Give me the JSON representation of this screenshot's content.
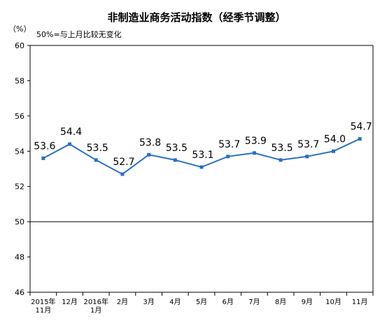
{
  "chart_data": {
    "type": "line",
    "title": "非制造业商务活动指数（经季节调整）",
    "unit_label": "（%）",
    "note": "50%=与上月比较无变化",
    "ylim": [
      46,
      60
    ],
    "y_ticks": [
      46,
      48,
      50,
      52,
      54,
      56,
      58,
      60
    ],
    "reference_line": 50,
    "categories": [
      [
        "2015年",
        "11月"
      ],
      [
        "12月"
      ],
      [
        "2016年",
        "1月"
      ],
      [
        "2月"
      ],
      [
        "3月"
      ],
      [
        "4月"
      ],
      [
        "5月"
      ],
      [
        "6月"
      ],
      [
        "7月"
      ],
      [
        "8月"
      ],
      [
        "9月"
      ],
      [
        "10月"
      ],
      [
        "11月"
      ]
    ],
    "series": [
      {
        "values": [
          53.6,
          54.4,
          53.5,
          52.7,
          53.8,
          53.5,
          53.1,
          53.7,
          53.9,
          53.5,
          53.7,
          54.0,
          54.7
        ],
        "data_labels": [
          "53.6",
          "54.4",
          "53.5",
          "52.7",
          "53.8",
          "53.5",
          "53.1",
          "53.7",
          "53.9",
          "53.5",
          "53.7",
          "54.0",
          "54.7"
        ],
        "color": "#2b6fc4"
      }
    ],
    "grid": false
  }
}
